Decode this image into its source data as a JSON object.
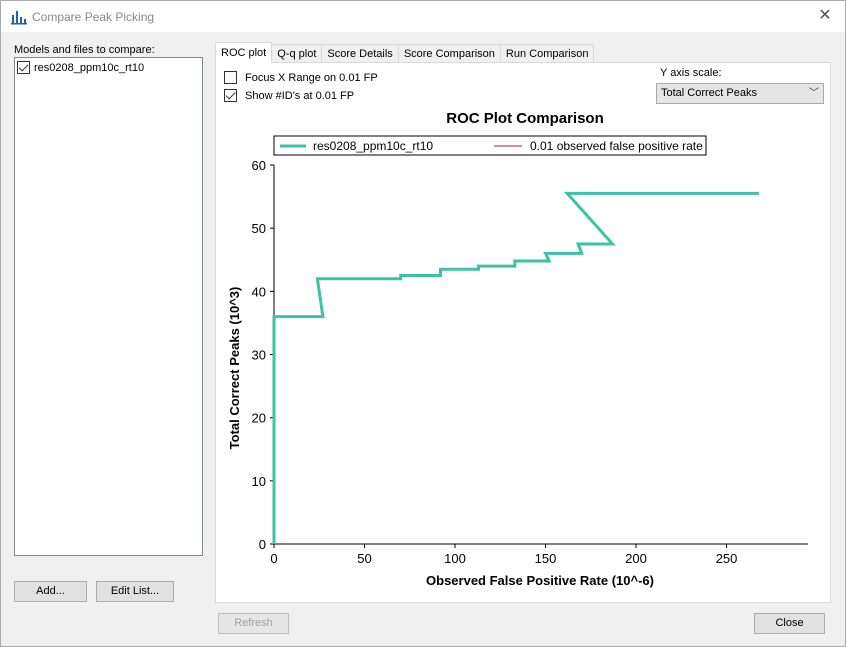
{
  "window": {
    "title": "Compare Peak Picking"
  },
  "sidebar": {
    "label": "Models and files to compare:",
    "items": [
      {
        "label": "res0208_ppm10c_rt10",
        "checked": true
      }
    ],
    "add_label": "Add...",
    "edit_label": "Edit List..."
  },
  "tabs": [
    {
      "label": "ROC plot",
      "active": true
    },
    {
      "label": "Q-q plot",
      "active": false
    },
    {
      "label": "Score Details",
      "active": false
    },
    {
      "label": "Score Comparison",
      "active": false
    },
    {
      "label": "Run Comparison",
      "active": false
    }
  ],
  "options": {
    "focus_label": "Focus X Range on 0.01 FP",
    "focus_checked": false,
    "show_label": "Show #ID's at 0.01 FP",
    "show_checked": true
  },
  "y_scale": {
    "label": "Y axis scale:",
    "selected": "Total Correct Peaks"
  },
  "footer": {
    "refresh_label": "Refresh",
    "close_label": "Close"
  },
  "colors": {
    "series": "#3cc3a5",
    "fp_line": "#a52a2a"
  },
  "chart_data": {
    "type": "line",
    "title": "ROC Plot Comparison",
    "xlabel": "Observed False Positive Rate (10^-6)",
    "ylabel": "Total Correct Peaks (10^3)",
    "xlim": [
      0,
      295
    ],
    "ylim": [
      0,
      60
    ],
    "xticks": [
      "0",
      "50",
      "100",
      "150",
      "200",
      "250"
    ],
    "yticks": [
      "0",
      "10",
      "20",
      "30",
      "40",
      "50",
      "60"
    ],
    "legend": [
      "res0208_ppm10c_rt10",
      "0.01 observed false positive rate"
    ],
    "series": [
      {
        "name": "res0208_ppm10c_rt10",
        "x": [
          0,
          0,
          27,
          24,
          70,
          70,
          92,
          92,
          113,
          113,
          133,
          133,
          152,
          150,
          170,
          168,
          187,
          162,
          268
        ],
        "y": [
          0,
          36,
          36,
          42,
          42,
          42.5,
          42.5,
          43.5,
          43.5,
          44,
          44,
          44.8,
          44.8,
          46,
          46,
          47.5,
          47.5,
          55.5,
          55.5
        ]
      }
    ]
  }
}
